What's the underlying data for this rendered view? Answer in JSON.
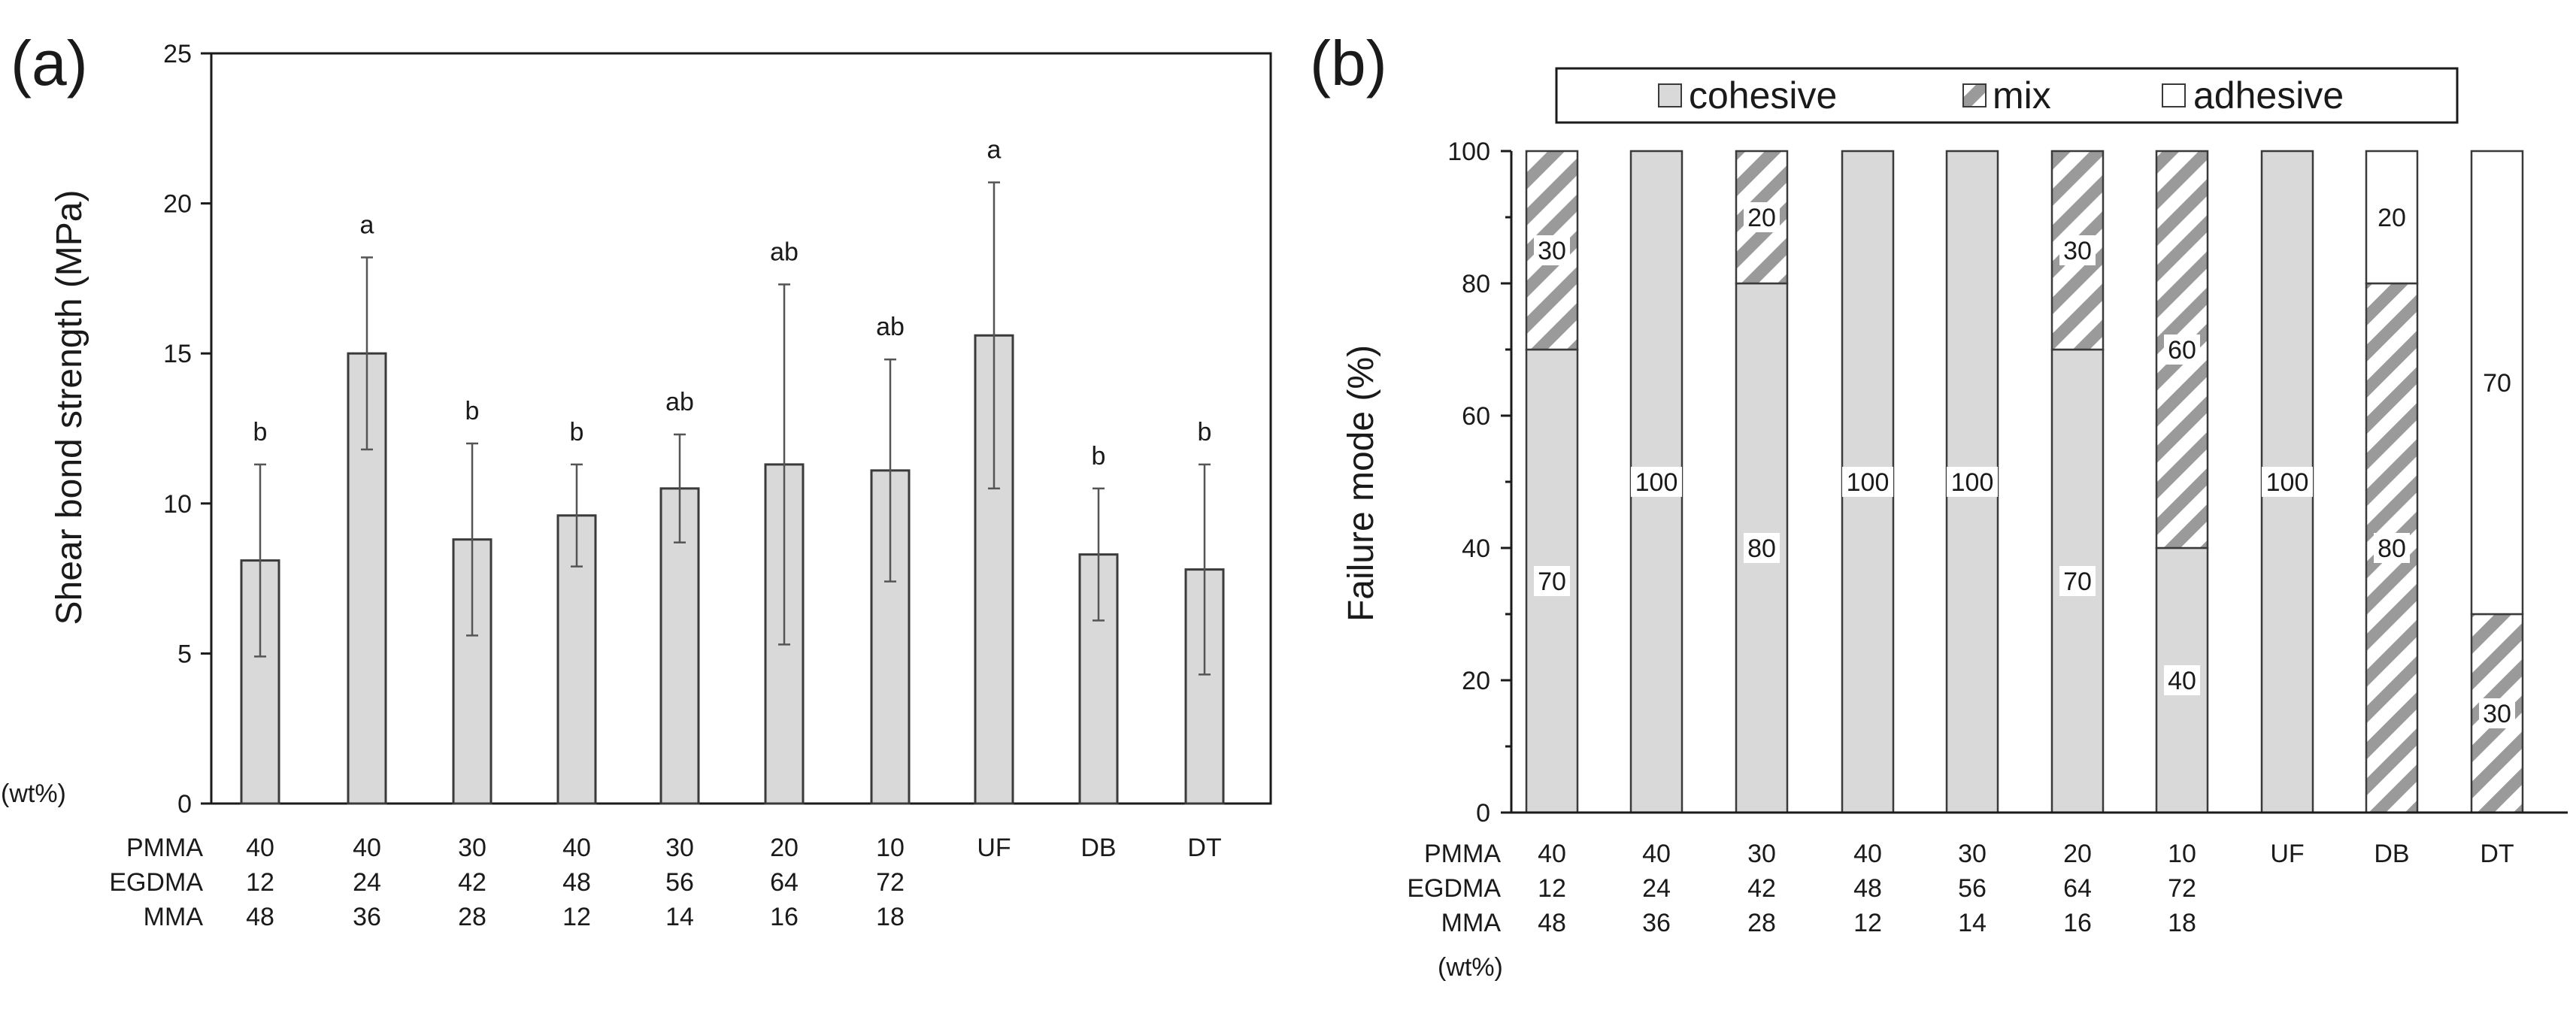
{
  "colors": {
    "bar_fill": "#d9d9d9",
    "bar_stroke": "#3a3a3a",
    "hatch": "#9a9a9a",
    "axis": "#1a1a1a",
    "background": "#ffffff"
  },
  "composition_rows": [
    "PMMA",
    "EGDMA",
    "MMA"
  ],
  "composition_unit": "(wt%)",
  "groups": [
    {
      "PMMA": "40",
      "EGDMA": "12",
      "MMA": "48"
    },
    {
      "PMMA": "40",
      "EGDMA": "24",
      "MMA": "36"
    },
    {
      "PMMA": "30",
      "EGDMA": "42",
      "MMA": "28"
    },
    {
      "PMMA": "40",
      "EGDMA": "48",
      "MMA": "12"
    },
    {
      "PMMA": "30",
      "EGDMA": "56",
      "MMA": "14"
    },
    {
      "PMMA": "20",
      "EGDMA": "64",
      "MMA": "16"
    },
    {
      "PMMA": "10",
      "EGDMA": "72",
      "MMA": "18"
    },
    {
      "PMMA": "UF",
      "EGDMA": "",
      "MMA": ""
    },
    {
      "PMMA": "DB",
      "EGDMA": "",
      "MMA": ""
    },
    {
      "PMMA": "DT",
      "EGDMA": "",
      "MMA": ""
    }
  ],
  "chart_data": [
    {
      "panel": "(a)",
      "type": "bar",
      "ylabel": "Shear bond strength (MPa)",
      "xlabel": "",
      "ylim": [
        0,
        25
      ],
      "yticks": [
        0,
        5,
        10,
        15,
        20,
        25
      ],
      "grid": false,
      "values": [
        8.1,
        15.0,
        8.8,
        9.6,
        10.5,
        11.3,
        11.1,
        15.6,
        8.3,
        7.8
      ],
      "error": [
        3.2,
        3.2,
        3.2,
        1.7,
        1.8,
        6.0,
        3.7,
        5.1,
        2.2,
        3.5
      ],
      "significance": [
        "b",
        "a",
        "b",
        "b",
        "ab",
        "ab",
        "ab",
        "a",
        "b",
        "b"
      ]
    },
    {
      "panel": "(b)",
      "type": "bar",
      "stacked": true,
      "ylabel": "Failure mode (%)",
      "xlabel": "",
      "ylim": [
        0,
        100
      ],
      "yticks": [
        0,
        20,
        40,
        60,
        80,
        100
      ],
      "grid": false,
      "legend_position": "top",
      "series": [
        {
          "name": "cohesive",
          "values": [
            70,
            100,
            80,
            100,
            100,
            70,
            40,
            100,
            0,
            0
          ]
        },
        {
          "name": "mix",
          "values": [
            30,
            0,
            20,
            0,
            0,
            30,
            60,
            0,
            80,
            30
          ]
        },
        {
          "name": "adhesive",
          "values": [
            0,
            0,
            0,
            0,
            0,
            0,
            0,
            0,
            20,
            70
          ]
        }
      ]
    }
  ]
}
